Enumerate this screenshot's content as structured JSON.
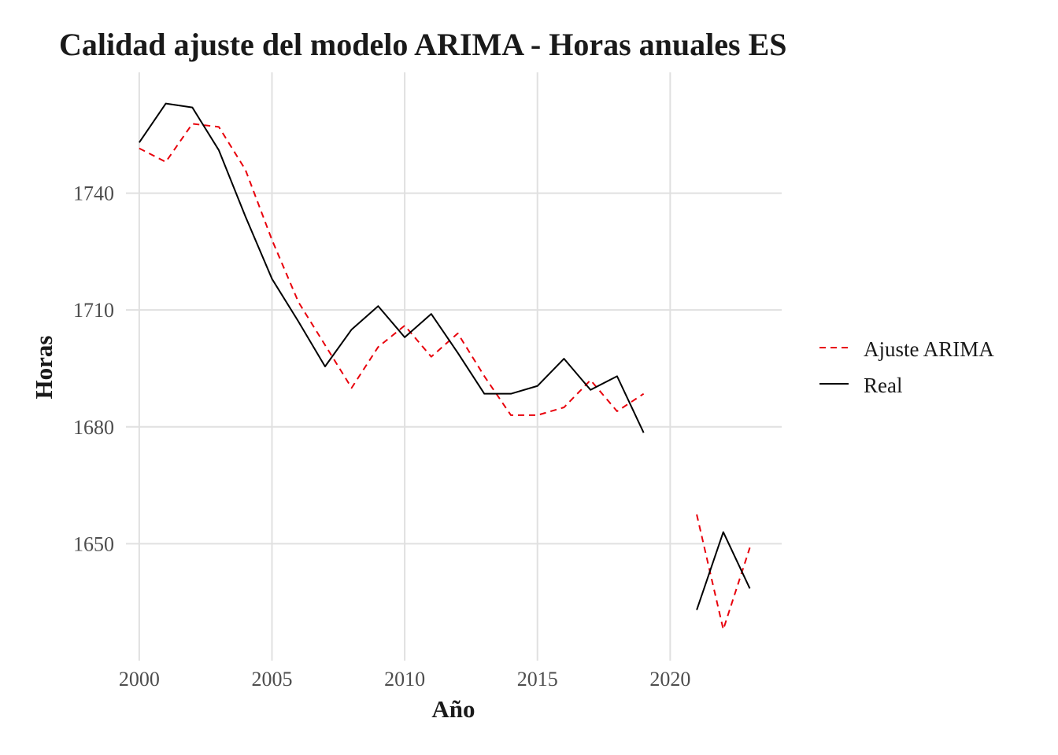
{
  "chart_data": {
    "type": "line",
    "title": "Calidad ajuste del modelo ARIMA - Horas anuales ES",
    "xlabel": "Año",
    "ylabel": "Horas",
    "xlim": [
      1999.5,
      2024.2
    ],
    "ylim": [
      1620,
      1771
    ],
    "x_ticks": [
      2000,
      2005,
      2010,
      2015,
      2020
    ],
    "y_ticks": [
      1650,
      1680,
      1710,
      1740
    ],
    "grid": true,
    "legend_position": "right",
    "series": [
      {
        "name": "Ajuste ARIMA",
        "color": "#e8000b",
        "dash": "dashed",
        "segments": [
          {
            "x": [
              2000,
              2001,
              2002,
              2003,
              2004,
              2005,
              2006,
              2007,
              2008,
              2009,
              2010,
              2011,
              2012,
              2013,
              2014,
              2015,
              2016,
              2017,
              2018,
              2019
            ],
            "y": [
              1751.5,
              1748,
              1757.8,
              1757,
              1746,
              1728,
              1712,
              1701,
              1690,
              1700.5,
              1706,
              1698,
              1704,
              1693,
              1683,
              1683,
              1685,
              1692,
              1684,
              1688.5
            ]
          },
          {
            "x": [
              2021,
              2022,
              2023
            ],
            "y": [
              1657.5,
              1628,
              1649
            ]
          }
        ]
      },
      {
        "name": "Real",
        "color": "#000000",
        "dash": "solid",
        "segments": [
          {
            "x": [
              2000,
              2001,
              2002,
              2003,
              2004,
              2005,
              2006,
              2007,
              2008,
              2009,
              2010,
              2011,
              2012,
              2013,
              2014,
              2015,
              2016,
              2017,
              2018,
              2019
            ],
            "y": [
              1753,
              1763,
              1762,
              1751,
              1734,
              1718,
              1707,
              1695.5,
              1705,
              1711,
              1703,
              1709,
              1699,
              1688.5,
              1688.5,
              1690.5,
              1697.5,
              1689.5,
              1693,
              1678.5
            ]
          },
          {
            "x": [
              2021,
              2022,
              2023
            ],
            "y": [
              1633,
              1653,
              1638.5
            ]
          }
        ]
      }
    ]
  }
}
